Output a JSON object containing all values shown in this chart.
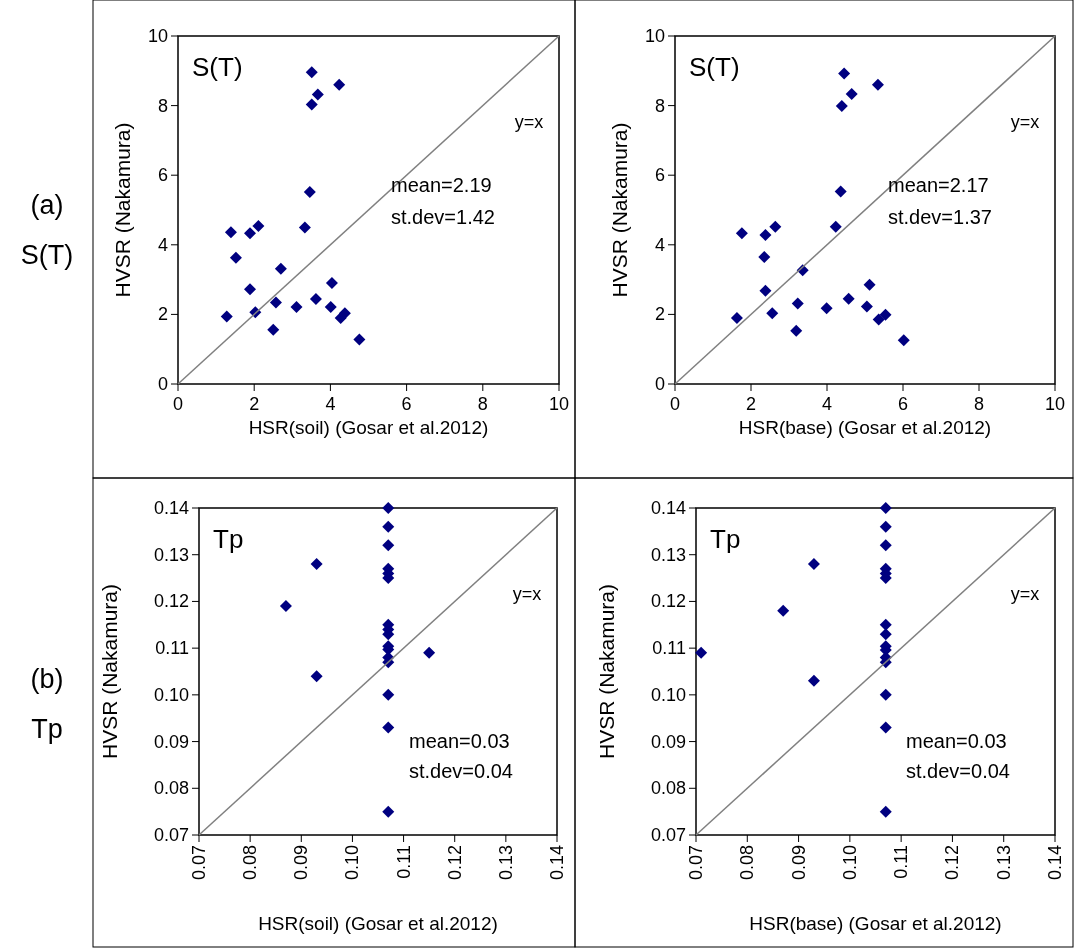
{
  "chart_data": [
    {
      "type": "scatter",
      "xlabel": "HSR(soil) (Gosar et al.2012)",
      "ylabel": "HVSR (Nakamura)",
      "xlim": [
        0,
        10
      ],
      "ylim": [
        0,
        10
      ],
      "xticks": [
        0,
        2,
        4,
        6,
        8,
        10
      ],
      "yticks": [
        0,
        2,
        4,
        6,
        8,
        10
      ],
      "annotations": [
        "S(T)",
        "y=x",
        "mean=2.19",
        "st.dev=1.42",
        "(a)",
        "S(T)"
      ],
      "series": [
        {
          "marker": "diamond",
          "color": "#000080",
          "x": [
            3.51,
            4.23,
            3.67,
            3.51,
            3.46,
            3.33,
            1.39,
            1.89,
            2.11,
            1.52,
            2.7,
            1.89,
            4.04,
            2.57,
            3.62,
            3.11,
            4.01,
            2.03,
            1.28,
            4.27,
            4.38,
            2.5,
            4.76
          ],
          "values": [
            8.96,
            8.6,
            8.32,
            8.03,
            5.52,
            4.5,
            4.36,
            4.33,
            4.54,
            3.63,
            3.31,
            2.72,
            2.9,
            2.34,
            2.44,
            2.21,
            2.21,
            2.06,
            1.94,
            1.9,
            2.03,
            1.56,
            1.28
          ]
        },
        {
          "type": "line",
          "marker": "none",
          "color": "#808080",
          "x": [
            0,
            10
          ],
          "values": [
            0,
            10
          ]
        }
      ]
    },
    {
      "type": "scatter",
      "xlabel": "HSR(base) (Gosar et al.2012)",
      "ylabel": "HVSR (Nakamura)",
      "xlim": [
        0,
        10
      ],
      "ylim": [
        0,
        10
      ],
      "xticks": [
        0,
        2,
        4,
        6,
        8,
        10
      ],
      "yticks": [
        0,
        2,
        4,
        6,
        8,
        10
      ],
      "annotations": [
        "S(T)",
        "y=x",
        "mean=2.17",
        "st.dev=1.37"
      ],
      "series": [
        {
          "marker": "diamond",
          "color": "#000080",
          "x": [
            4.45,
            5.34,
            4.65,
            4.39,
            4.36,
            4.23,
            1.76,
            2.38,
            2.64,
            2.35,
            3.36,
            2.38,
            5.12,
            3.23,
            4.57,
            3.99,
            5.05,
            2.56,
            1.63,
            5.36,
            5.54,
            3.19,
            6.02
          ],
          "values": [
            8.92,
            8.6,
            8.33,
            7.99,
            5.53,
            4.52,
            4.33,
            4.28,
            4.52,
            3.65,
            3.27,
            2.68,
            2.85,
            2.31,
            2.45,
            2.18,
            2.23,
            2.03,
            1.9,
            1.85,
            1.99,
            1.53,
            1.26
          ]
        },
        {
          "type": "line",
          "marker": "none",
          "color": "#808080",
          "x": [
            0,
            10
          ],
          "values": [
            0,
            10
          ]
        }
      ]
    },
    {
      "type": "scatter",
      "xlabel": "HSR(soil) (Gosar et al.2012)",
      "ylabel": "HVSR (Nakamura)",
      "xlim": [
        0.07,
        0.14
      ],
      "ylim": [
        0.07,
        0.14
      ],
      "xticks": [
        0.07,
        0.08,
        0.09,
        {
          "value": 0.1,
          "label": "0.10"
        },
        0.11,
        0.12,
        0.13,
        0.14
      ],
      "yticks": [
        0.07,
        0.08,
        0.09,
        {
          "value": 0.1,
          "label": "0.10"
        },
        0.11,
        0.12,
        0.13,
        0.14
      ],
      "annotations": [
        "Tp",
        "y=x",
        "mean=0.03",
        "st.dev=0.04",
        "(b)",
        "Tp"
      ],
      "series": [
        {
          "marker": "diamond",
          "color": "#000080",
          "x": [
            0.107,
            0.107,
            0.107,
            0.107,
            0.107,
            0.107,
            0.107,
            0.107,
            0.107,
            0.107,
            0.107,
            0.107,
            0.107,
            0.107,
            0.107,
            0.107,
            0.093,
            0.087,
            0.093,
            0.115
          ],
          "values": [
            0.14,
            0.136,
            0.132,
            0.127,
            0.126,
            0.125,
            0.115,
            0.114,
            0.113,
            0.1104,
            0.1097,
            0.108,
            0.107,
            0.1,
            0.093,
            0.075,
            0.128,
            0.119,
            0.104,
            0.109
          ]
        },
        {
          "type": "line",
          "marker": "none",
          "color": "#808080",
          "x": [
            0.07,
            0.14
          ],
          "values": [
            0.07,
            0.14
          ]
        }
      ]
    },
    {
      "type": "scatter",
      "xlabel": "HSR(base) (Gosar et al.2012)",
      "ylabel": "HVSR (Nakamura)",
      "xlim": [
        0.07,
        0.14
      ],
      "ylim": [
        0.07,
        0.14
      ],
      "xticks": [
        0.07,
        0.08,
        0.09,
        {
          "value": 0.1,
          "label": "0.10"
        },
        0.11,
        0.12,
        0.13,
        0.14
      ],
      "yticks": [
        0.07,
        0.08,
        0.09,
        {
          "value": 0.1,
          "label": "0.10"
        },
        0.11,
        0.12,
        0.13,
        0.14
      ],
      "annotations": [
        "Tp",
        "y=x",
        "mean=0.03",
        "st.dev=0.04"
      ],
      "series": [
        {
          "marker": "diamond",
          "color": "#000080",
          "x": [
            0.107,
            0.107,
            0.107,
            0.107,
            0.107,
            0.107,
            0.107,
            0.107,
            0.107,
            0.107,
            0.107,
            0.107,
            0.107,
            0.107,
            0.107,
            0.093,
            0.087,
            0.093,
            0.071
          ],
          "values": [
            0.14,
            0.136,
            0.132,
            0.127,
            0.126,
            0.125,
            0.115,
            0.113,
            0.1104,
            0.1096,
            0.108,
            0.107,
            0.1,
            0.093,
            0.075,
            0.128,
            0.118,
            0.103,
            0.109
          ]
        },
        {
          "type": "line",
          "marker": "none",
          "color": "#808080",
          "x": [
            0.07,
            0.14
          ],
          "values": [
            0.07,
            0.14
          ]
        }
      ]
    }
  ]
}
